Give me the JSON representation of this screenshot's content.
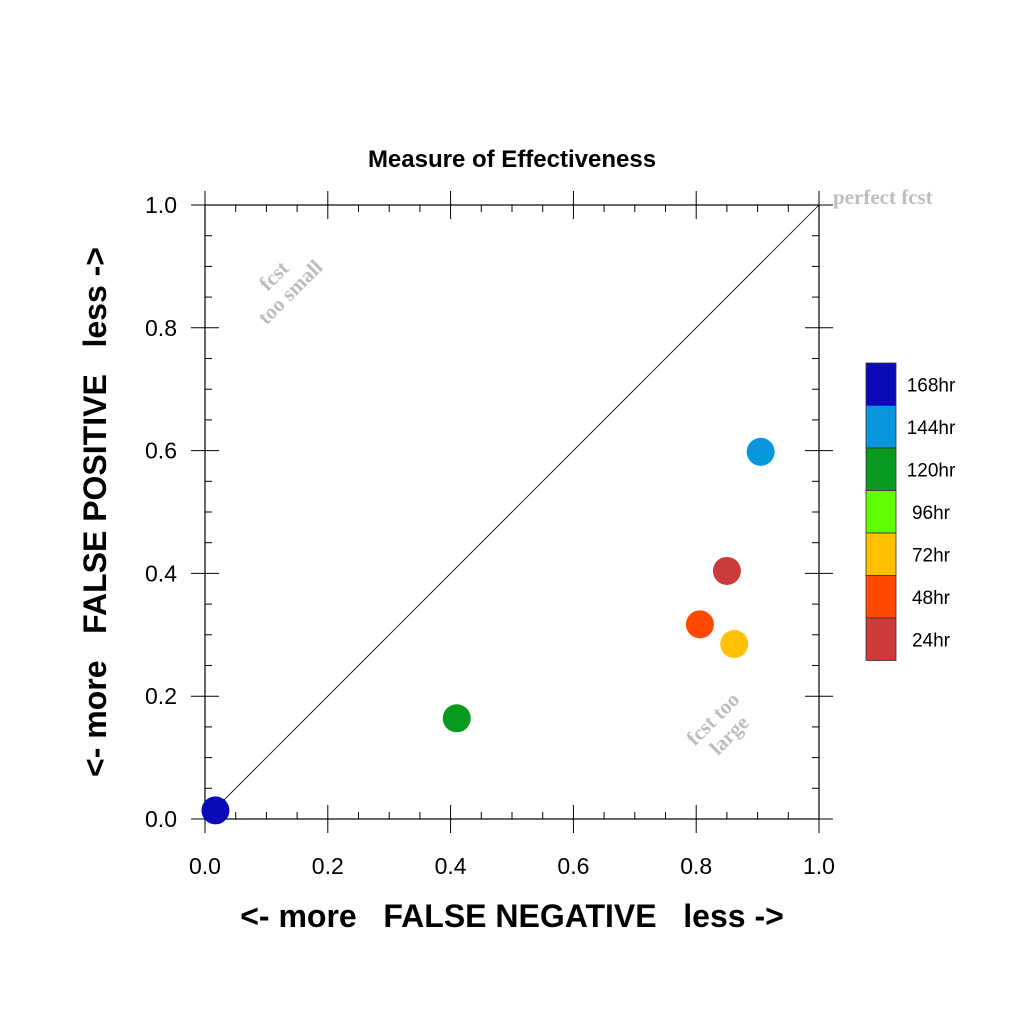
{
  "chart_data": {
    "type": "scatter",
    "title": "Measure of Effectiveness",
    "xlabel": "<- more   FALSE NEGATIVE   less ->",
    "ylabel": "<- more   FALSE POSITIVE   less ->",
    "xlim": [
      0,
      1
    ],
    "ylim": [
      0,
      1
    ],
    "xticks": [
      "0.0",
      "0.2",
      "0.4",
      "0.6",
      "0.8",
      "1.0"
    ],
    "yticks": [
      "0.0",
      "0.2",
      "0.4",
      "0.6",
      "0.8",
      "1.0"
    ],
    "grid": false,
    "reference_line": {
      "from": [
        0,
        0
      ],
      "to": [
        1,
        1
      ]
    },
    "annotations": [
      {
        "text": "perfect fcst"
      },
      {
        "lines": [
          "fcst",
          "too small"
        ]
      },
      {
        "lines": [
          "fcst too",
          "large"
        ]
      }
    ],
    "legend": {
      "placement": "right",
      "entries": [
        {
          "label": "168hr",
          "color": "#0a0ab8"
        },
        {
          "label": "144hr",
          "color": "#0896dc"
        },
        {
          "label": "120hr",
          "color": "#089a1e"
        },
        {
          "label": "96hr",
          "color": "#5eff00"
        },
        {
          "label": "72hr",
          "color": "#ffc000"
        },
        {
          "label": "48hr",
          "color": "#ff4800"
        },
        {
          "label": "24hr",
          "color": "#cc3a3a"
        }
      ]
    },
    "series": [
      {
        "name": "168hr",
        "x": 0.017,
        "y": 0.014
      },
      {
        "name": "144hr",
        "x": 0.905,
        "y": 0.598
      },
      {
        "name": "120hr",
        "x": 0.41,
        "y": 0.164
      },
      {
        "name": "72hr",
        "x": 0.862,
        "y": 0.285
      },
      {
        "name": "48hr",
        "x": 0.806,
        "y": 0.317
      },
      {
        "name": "24hr",
        "x": 0.85,
        "y": 0.404
      }
    ]
  }
}
